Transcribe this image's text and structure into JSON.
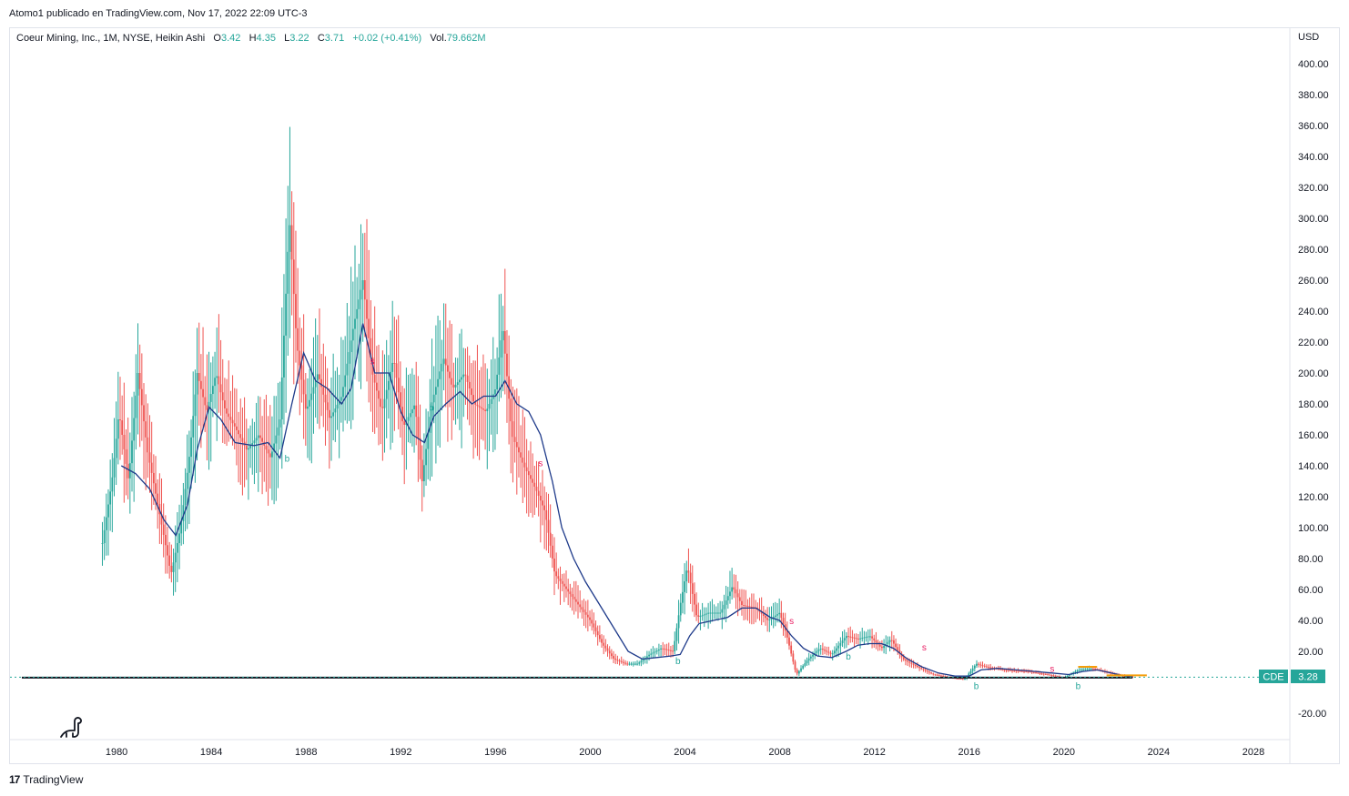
{
  "header": {
    "publisher_line": "Atomo1 publicado en TradingView.com, Nov 17, 2022 22:09 UTC-3"
  },
  "legend": {
    "symbol_desc": "Coeur Mining, Inc., 1M, NYSE, Heikin Ashi",
    "o_label": "O",
    "o_value": "3.42",
    "h_label": "H",
    "h_value": "4.35",
    "l_label": "L",
    "l_value": "3.22",
    "c_label": "C",
    "c_value": "3.71",
    "change": "+0.02 (+0.41%)",
    "vol_label": "Vol.",
    "vol_value": "79.662M"
  },
  "price_axis": {
    "currency": "USD"
  },
  "last_price": {
    "ticker": "CDE",
    "value": "3.28",
    "level": 3.28
  },
  "footer": {
    "brand_glyph": "17",
    "brand": "TradingView"
  },
  "colors": {
    "up": "#26a69a",
    "down": "#ef5350",
    "ma": "#1e3a8a",
    "last": "#26a69a",
    "accent": "#f59e0b"
  },
  "chart_data": {
    "type": "candlestick",
    "style": "Heikin Ashi",
    "timeframe": "1M",
    "symbol": "CDE",
    "ylim": [
      -20,
      400
    ],
    "yticks": [
      -20,
      20,
      40,
      60,
      80,
      100,
      120,
      140,
      160,
      180,
      200,
      220,
      240,
      260,
      280,
      300,
      320,
      340,
      360,
      380,
      400
    ],
    "xticks": [
      1980,
      1984,
      1988,
      1992,
      1996,
      2000,
      2004,
      2008,
      2012,
      2016,
      2020,
      2024,
      2028
    ],
    "xlim": [
      1975.5,
      2029.5
    ],
    "price_path": [
      [
        1979.4,
        90
      ],
      [
        1979.8,
        130
      ],
      [
        1980.1,
        175
      ],
      [
        1980.5,
        130
      ],
      [
        1980.9,
        200
      ],
      [
        1981.3,
        150
      ],
      [
        1981.8,
        110
      ],
      [
        1982.3,
        70
      ],
      [
        1982.7,
        100
      ],
      [
        1983.1,
        150
      ],
      [
        1983.4,
        200
      ],
      [
        1983.8,
        175
      ],
      [
        1984.2,
        200
      ],
      [
        1984.6,
        175
      ],
      [
        1985.0,
        165
      ],
      [
        1985.5,
        150
      ],
      [
        1986.0,
        160
      ],
      [
        1986.5,
        145
      ],
      [
        1986.9,
        170
      ],
      [
        1987.3,
        300
      ],
      [
        1987.6,
        220
      ],
      [
        1988.0,
        175
      ],
      [
        1988.5,
        200
      ],
      [
        1989.0,
        170
      ],
      [
        1989.5,
        185
      ],
      [
        1990.0,
        230
      ],
      [
        1990.4,
        260
      ],
      [
        1990.8,
        200
      ],
      [
        1991.2,
        175
      ],
      [
        1991.7,
        210
      ],
      [
        1992.1,
        165
      ],
      [
        1992.6,
        180
      ],
      [
        1992.9,
        130
      ],
      [
        1993.3,
        180
      ],
      [
        1993.8,
        210
      ],
      [
        1994.2,
        190
      ],
      [
        1994.7,
        200
      ],
      [
        1995.1,
        180
      ],
      [
        1995.6,
        175
      ],
      [
        1996.0,
        190
      ],
      [
        1996.3,
        230
      ],
      [
        1996.7,
        160
      ],
      [
        1997.2,
        140
      ],
      [
        1997.7,
        125
      ],
      [
        1998.1,
        110
      ],
      [
        1998.5,
        70
      ],
      [
        1999.0,
        60
      ],
      [
        1999.5,
        50
      ],
      [
        2000.0,
        40
      ],
      [
        2000.5,
        25
      ],
      [
        2001.0,
        15
      ],
      [
        2001.5,
        12
      ],
      [
        2002.0,
        12
      ],
      [
        2002.5,
        18
      ],
      [
        2003.0,
        22
      ],
      [
        2003.5,
        20
      ],
      [
        2003.8,
        50
      ],
      [
        2004.1,
        75
      ],
      [
        2004.5,
        42
      ],
      [
        2005.0,
        45
      ],
      [
        2005.5,
        45
      ],
      [
        2006.0,
        62
      ],
      [
        2006.4,
        50
      ],
      [
        2007.0,
        48
      ],
      [
        2007.5,
        40
      ],
      [
        2008.0,
        45
      ],
      [
        2008.3,
        30
      ],
      [
        2008.7,
        5
      ],
      [
        2009.2,
        15
      ],
      [
        2009.7,
        22
      ],
      [
        2010.2,
        18
      ],
      [
        2010.8,
        30
      ],
      [
        2011.3,
        28
      ],
      [
        2011.8,
        30
      ],
      [
        2012.3,
        22
      ],
      [
        2012.7,
        28
      ],
      [
        2013.2,
        15
      ],
      [
        2013.8,
        10
      ],
      [
        2014.5,
        5
      ],
      [
        2015.2,
        3
      ],
      [
        2015.8,
        2
      ],
      [
        2016.3,
        12
      ],
      [
        2016.7,
        10
      ],
      [
        2017.5,
        8
      ],
      [
        2018.5,
        7
      ],
      [
        2019.3,
        5
      ],
      [
        2020.0,
        3
      ],
      [
        2020.6,
        8
      ],
      [
        2021.2,
        9
      ],
      [
        2021.7,
        7
      ],
      [
        2022.2,
        5
      ],
      [
        2022.6,
        4
      ],
      [
        2022.9,
        3.5
      ]
    ],
    "moving_average": [
      [
        1980.2,
        140
      ],
      [
        1980.8,
        135
      ],
      [
        1981.4,
        125
      ],
      [
        1982.0,
        105
      ],
      [
        1982.5,
        95
      ],
      [
        1983.0,
        115
      ],
      [
        1983.4,
        150
      ],
      [
        1983.9,
        178
      ],
      [
        1984.4,
        170
      ],
      [
        1985.0,
        155
      ],
      [
        1985.8,
        153
      ],
      [
        1986.4,
        155
      ],
      [
        1986.9,
        145
      ],
      [
        1987.4,
        180
      ],
      [
        1987.9,
        213
      ],
      [
        1988.4,
        195
      ],
      [
        1988.9,
        190
      ],
      [
        1989.5,
        180
      ],
      [
        1989.9,
        190
      ],
      [
        1990.4,
        232
      ],
      [
        1990.9,
        200
      ],
      [
        1991.5,
        200
      ],
      [
        1992.0,
        175
      ],
      [
        1992.5,
        160
      ],
      [
        1993.0,
        155
      ],
      [
        1993.4,
        172
      ],
      [
        1993.9,
        180
      ],
      [
        1994.5,
        188
      ],
      [
        1995.0,
        180
      ],
      [
        1995.5,
        185
      ],
      [
        1996.0,
        185
      ],
      [
        1996.4,
        195
      ],
      [
        1996.9,
        180
      ],
      [
        1997.4,
        175
      ],
      [
        1997.9,
        160
      ],
      [
        1998.4,
        130
      ],
      [
        1998.8,
        100
      ],
      [
        1999.3,
        80
      ],
      [
        1999.8,
        65
      ],
      [
        2000.4,
        50
      ],
      [
        2001.0,
        35
      ],
      [
        2001.6,
        20
      ],
      [
        2002.2,
        15
      ],
      [
        2002.8,
        16
      ],
      [
        2003.4,
        17
      ],
      [
        2003.8,
        18
      ],
      [
        2004.2,
        30
      ],
      [
        2004.6,
        38
      ],
      [
        2005.2,
        40
      ],
      [
        2005.8,
        42
      ],
      [
        2006.4,
        48
      ],
      [
        2007.0,
        48
      ],
      [
        2007.6,
        42
      ],
      [
        2008.0,
        40
      ],
      [
        2008.5,
        30
      ],
      [
        2009.0,
        22
      ],
      [
        2009.6,
        17
      ],
      [
        2010.2,
        16
      ],
      [
        2010.8,
        20
      ],
      [
        2011.3,
        24
      ],
      [
        2011.8,
        25
      ],
      [
        2012.3,
        25
      ],
      [
        2012.8,
        22
      ],
      [
        2013.4,
        15
      ],
      [
        2014.0,
        10
      ],
      [
        2014.7,
        6
      ],
      [
        2015.4,
        4
      ],
      [
        2016.0,
        4
      ],
      [
        2016.5,
        8
      ],
      [
        2017.2,
        9
      ],
      [
        2018.0,
        8
      ],
      [
        2018.8,
        7
      ],
      [
        2019.5,
        6
      ],
      [
        2020.2,
        5
      ],
      [
        2020.8,
        7
      ],
      [
        2021.4,
        8
      ],
      [
        2022.0,
        6
      ],
      [
        2022.6,
        4
      ],
      [
        2022.9,
        3.5
      ]
    ],
    "signals": [
      {
        "year": 1987.2,
        "price": 145,
        "label": "b"
      },
      {
        "year": 1990.8,
        "price": 208,
        "label": "s"
      },
      {
        "year": 1993.3,
        "price": 178,
        "label": "b"
      },
      {
        "year": 1997.9,
        "price": 142,
        "label": "s"
      },
      {
        "year": 2003.7,
        "price": 14,
        "label": "b"
      },
      {
        "year": 2008.5,
        "price": 40,
        "label": "s"
      },
      {
        "year": 2010.9,
        "price": 17,
        "label": "b"
      },
      {
        "year": 2014.1,
        "price": 23,
        "label": "s"
      },
      {
        "year": 2016.3,
        "price": -2,
        "label": "b"
      },
      {
        "year": 2019.5,
        "price": 9,
        "label": "s"
      },
      {
        "year": 2020.6,
        "price": -2,
        "label": "b"
      }
    ],
    "support_line": {
      "price": 3.0
    }
  }
}
